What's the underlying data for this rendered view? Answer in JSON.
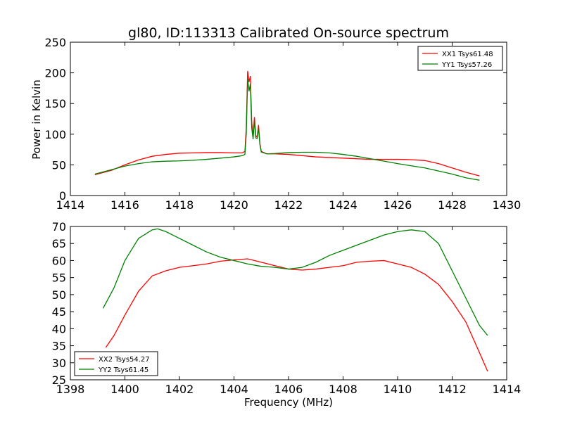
{
  "figure": {
    "title": "gl80, ID:113313 Calibrated On-source spectrum",
    "xlabel": "Frequency (MHz)",
    "ylabel": "Power in Kelvin"
  },
  "chart_data": [
    {
      "type": "line",
      "title": "gl80, ID:113313 Calibrated On-source spectrum",
      "xlabel": "",
      "ylabel": "Power in Kelvin",
      "xlim": [
        1414,
        1430
      ],
      "ylim": [
        0,
        250
      ],
      "xticks": [
        "1414",
        "1416",
        "1418",
        "1420",
        "1422",
        "1424",
        "1426",
        "1428",
        "1430"
      ],
      "yticks": [
        "0",
        "50",
        "100",
        "150",
        "200",
        "250"
      ],
      "legend_position": "top-right",
      "grid": false,
      "series": [
        {
          "name": "XX1 Tsys61.48",
          "color": "#ff0000",
          "points": [
            [
              1414.9,
              34
            ],
            [
              1415.5,
              41
            ],
            [
              1416,
              50
            ],
            [
              1416.5,
              58
            ],
            [
              1417,
              64
            ],
            [
              1417.5,
              67
            ],
            [
              1418,
              69
            ],
            [
              1418.5,
              69.5
            ],
            [
              1419,
              70
            ],
            [
              1419.5,
              70
            ],
            [
              1420,
              69.5
            ],
            [
              1420.3,
              69.5
            ],
            [
              1420.4,
              72
            ],
            [
              1420.45,
              110
            ],
            [
              1420.5,
              203
            ],
            [
              1420.55,
              185
            ],
            [
              1420.6,
              195
            ],
            [
              1420.65,
              120
            ],
            [
              1420.7,
              96
            ],
            [
              1420.75,
              128
            ],
            [
              1420.8,
              98
            ],
            [
              1420.85,
              95
            ],
            [
              1420.9,
              115
            ],
            [
              1420.95,
              85
            ],
            [
              1421,
              72
            ],
            [
              1421.2,
              68
            ],
            [
              1421.5,
              68
            ],
            [
              1422,
              67
            ],
            [
              1422.5,
              65
            ],
            [
              1423,
              63
            ],
            [
              1423.5,
              62
            ],
            [
              1424,
              61
            ],
            [
              1424.5,
              60
            ],
            [
              1425,
              59
            ],
            [
              1425.5,
              59
            ],
            [
              1426,
              59
            ],
            [
              1426.5,
              58.5
            ],
            [
              1427,
              57
            ],
            [
              1427.5,
              52
            ],
            [
              1428,
              45
            ],
            [
              1428.5,
              38
            ],
            [
              1429,
              32
            ]
          ]
        },
        {
          "name": "YY1 Tsys57.26",
          "color": "#008000",
          "points": [
            [
              1414.9,
              35
            ],
            [
              1415.5,
              42
            ],
            [
              1416,
              48
            ],
            [
              1416.5,
              52
            ],
            [
              1417,
              55
            ],
            [
              1417.5,
              56
            ],
            [
              1418,
              56.5
            ],
            [
              1418.5,
              57.5
            ],
            [
              1419,
              59
            ],
            [
              1419.5,
              61
            ],
            [
              1420,
              63
            ],
            [
              1420.3,
              65
            ],
            [
              1420.4,
              67
            ],
            [
              1420.45,
              100
            ],
            [
              1420.5,
              190
            ],
            [
              1420.55,
              170
            ],
            [
              1420.6,
              182
            ],
            [
              1420.65,
              110
            ],
            [
              1420.7,
              92
            ],
            [
              1420.75,
              122
            ],
            [
              1420.8,
              94
            ],
            [
              1420.85,
              93
            ],
            [
              1420.9,
              110
            ],
            [
              1420.95,
              83
            ],
            [
              1421,
              71
            ],
            [
              1421.2,
              68
            ],
            [
              1421.5,
              68.5
            ],
            [
              1422,
              70
            ],
            [
              1422.5,
              70.5
            ],
            [
              1423,
              70.5
            ],
            [
              1423.5,
              69.5
            ],
            [
              1424,
              67
            ],
            [
              1424.5,
              64
            ],
            [
              1425,
              60
            ],
            [
              1425.5,
              56
            ],
            [
              1426,
              52
            ],
            [
              1426.5,
              48.5
            ],
            [
              1427,
              45
            ],
            [
              1427.5,
              40
            ],
            [
              1428,
              35
            ],
            [
              1428.5,
              29
            ],
            [
              1429,
              25
            ]
          ]
        }
      ]
    },
    {
      "type": "line",
      "title": "",
      "xlabel": "Frequency (MHz)",
      "ylabel": "",
      "xlim": [
        1398,
        1414
      ],
      "ylim": [
        25,
        70
      ],
      "xticks": [
        "1398",
        "1400",
        "1402",
        "1404",
        "1406",
        "1408",
        "1410",
        "1412",
        "1414"
      ],
      "yticks": [
        "25",
        "30",
        "35",
        "40",
        "45",
        "50",
        "55",
        "60",
        "65",
        "70"
      ],
      "legend_position": "bottom-left",
      "grid": false,
      "series": [
        {
          "name": "XX2 Tsys54.27",
          "color": "#ff0000",
          "points": [
            [
              1399.3,
              34.5
            ],
            [
              1399.6,
              38
            ],
            [
              1400,
              44
            ],
            [
              1400.5,
              51
            ],
            [
              1401,
              55.5
            ],
            [
              1401.5,
              57
            ],
            [
              1402,
              58
            ],
            [
              1402.5,
              58.5
            ],
            [
              1403,
              59
            ],
            [
              1403.5,
              59.8
            ],
            [
              1404,
              60.2
            ],
            [
              1404.5,
              60.5
            ],
            [
              1405,
              59.5
            ],
            [
              1405.5,
              58.5
            ],
            [
              1406,
              57.5
            ],
            [
              1406.5,
              57.2
            ],
            [
              1407,
              57.5
            ],
            [
              1407.5,
              58
            ],
            [
              1408,
              58.5
            ],
            [
              1408.5,
              59.5
            ],
            [
              1409,
              59.8
            ],
            [
              1409.5,
              60
            ],
            [
              1410,
              59
            ],
            [
              1410.5,
              58
            ],
            [
              1411,
              56
            ],
            [
              1411.5,
              53
            ],
            [
              1412,
              48
            ],
            [
              1412.5,
              42
            ],
            [
              1413,
              33
            ],
            [
              1413.3,
              27.5
            ]
          ]
        },
        {
          "name": "YY2 Tsys61.45",
          "color": "#008000",
          "points": [
            [
              1399.2,
              46
            ],
            [
              1399.6,
              52
            ],
            [
              1400,
              60
            ],
            [
              1400.5,
              66.5
            ],
            [
              1401,
              69
            ],
            [
              1401.2,
              69.3
            ],
            [
              1401.5,
              68.5
            ],
            [
              1402,
              66.5
            ],
            [
              1402.5,
              64.5
            ],
            [
              1403,
              62.5
            ],
            [
              1403.5,
              61
            ],
            [
              1404,
              60
            ],
            [
              1404.5,
              59
            ],
            [
              1405,
              58.3
            ],
            [
              1405.5,
              58
            ],
            [
              1406,
              57.5
            ],
            [
              1406.5,
              58
            ],
            [
              1407,
              59.5
            ],
            [
              1407.5,
              61.5
            ],
            [
              1408,
              63
            ],
            [
              1408.5,
              64.5
            ],
            [
              1409,
              66
            ],
            [
              1409.5,
              67.5
            ],
            [
              1410,
              68.5
            ],
            [
              1410.5,
              69
            ],
            [
              1411,
              68.5
            ],
            [
              1411.5,
              65
            ],
            [
              1412,
              57
            ],
            [
              1412.5,
              49
            ],
            [
              1413,
              41
            ],
            [
              1413.3,
              38
            ]
          ]
        }
      ]
    }
  ]
}
